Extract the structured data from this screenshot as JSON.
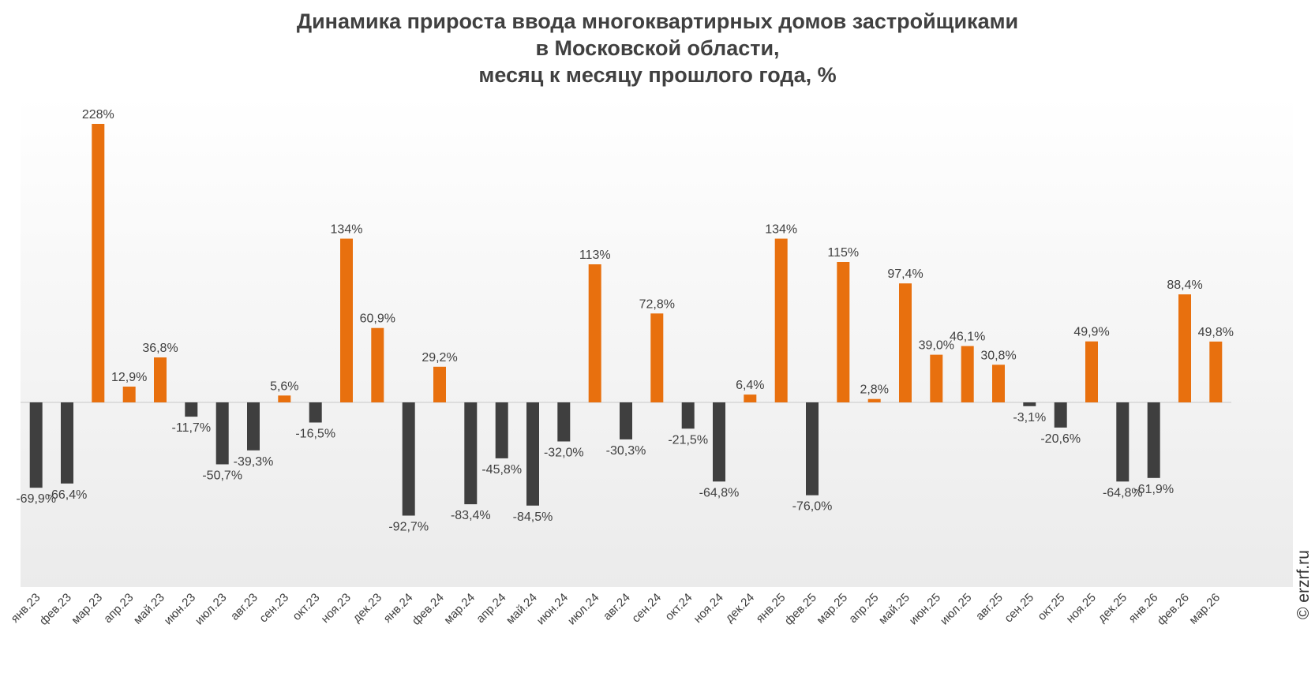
{
  "title": {
    "line1": "Динамика прироста ввода многоквартирных домов застройщиками",
    "line2": "в Московской области,",
    "line3": "месяц к месяцу прошлого года, %"
  },
  "watermark": "© erzrf.ru",
  "colors": {
    "positive": "#e8700e",
    "negative": "#3f3f3f",
    "axis": "#c8c8c8",
    "label": "#404040"
  },
  "chart_data": {
    "type": "bar",
    "title": "Динамика прироста ввода многоквартирных домов застройщиками в Московской области, месяц к месяцу прошлого года, %",
    "xlabel": "",
    "ylabel": "",
    "grid": false,
    "categories": [
      "янв.23",
      "фев.23",
      "мар.23",
      "апр.23",
      "май.23",
      "июн.23",
      "июл.23",
      "авг.23",
      "сен.23",
      "окт.23",
      "ноя.23",
      "дек.23",
      "янв.24",
      "фев.24",
      "мар.24",
      "апр.24",
      "май.24",
      "июн.24",
      "июл.24",
      "авг.24",
      "сен.24",
      "окт.24",
      "ноя.24",
      "дек.24",
      "янв.25",
      "фев.25",
      "мар.25",
      "апр.25",
      "май.25",
      "июн.25",
      "июл.25",
      "авг.25",
      "сен.25",
      "окт.25",
      "ноя.25",
      "дек.25",
      "янв.26",
      "фев.26",
      "мар.26"
    ],
    "values": [
      -69.9,
      -66.4,
      228,
      12.9,
      36.8,
      -11.7,
      -50.7,
      -39.3,
      5.6,
      -16.5,
      134,
      60.9,
      -92.7,
      29.2,
      -83.4,
      -45.8,
      -84.5,
      -32.0,
      113,
      -30.3,
      72.8,
      -21.5,
      -64.8,
      6.4,
      134,
      -76.0,
      115,
      2.8,
      97.4,
      39.0,
      46.1,
      30.8,
      -3.1,
      -20.6,
      49.9,
      -64.8,
      -61.9,
      88.4,
      49.8
    ],
    "data_labels": [
      "-69,9%",
      "-66,4%",
      "228%",
      "12,9%",
      "36,8%",
      "-11,7%",
      "-50,7%",
      "-39,3%",
      "5,6%",
      "-16,5%",
      "134%",
      "60,9%",
      "-92,7%",
      "29,2%",
      "-83,4%",
      "-45,8%",
      "-84,5%",
      "-32,0%",
      "113%",
      "-30,3%",
      "72,8%",
      "-21,5%",
      "-64,8%",
      "6,4%",
      "134%",
      "-76,0%",
      "115%",
      "2,8%",
      "97,4%",
      "39,0%",
      "46,1%",
      "30,8%",
      "-3,1%",
      "-20,6%",
      "49,9%",
      "-64,8%",
      "-61,9%",
      "88,4%",
      "49,8%"
    ],
    "ylim": [
      -150,
      250
    ]
  }
}
